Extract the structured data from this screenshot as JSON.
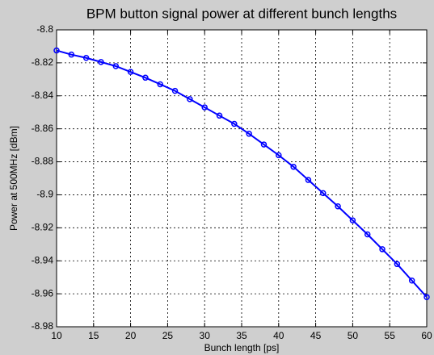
{
  "chart_data": {
    "type": "line",
    "title": "BPM button signal power at different bunch lengths",
    "x_label": "Bunch length [ps]",
    "y_label": "Power at 500MHz [dBm]",
    "x": [
      10,
      12,
      14,
      16,
      18,
      20,
      22,
      24,
      26,
      28,
      30,
      32,
      34,
      36,
      38,
      40,
      42,
      44,
      46,
      48,
      50,
      52,
      54,
      56,
      58,
      60
    ],
    "series": [
      {
        "name": "Power",
        "color": "#0000ff",
        "values": [
          -8.8125,
          -8.815,
          -8.817,
          -8.8195,
          -8.822,
          -8.8255,
          -8.829,
          -8.833,
          -8.837,
          -8.842,
          -8.847,
          -8.852,
          -8.857,
          -8.863,
          -8.8695,
          -8.876,
          -8.883,
          -8.891,
          -8.899,
          -8.907,
          -8.9155,
          -8.924,
          -8.933,
          -8.942,
          -8.952,
          -8.962
        ]
      }
    ],
    "xlim": [
      10,
      60
    ],
    "xticks": [
      10,
      15,
      20,
      25,
      30,
      35,
      40,
      45,
      50,
      55,
      60
    ],
    "ylim": [
      -8.98,
      -8.8
    ],
    "yticks": [
      -8.98,
      -8.96,
      -8.94,
      -8.92,
      -8.9,
      -8.88,
      -8.86,
      -8.84,
      -8.82,
      -8.8
    ],
    "grid": true,
    "markers": true
  }
}
